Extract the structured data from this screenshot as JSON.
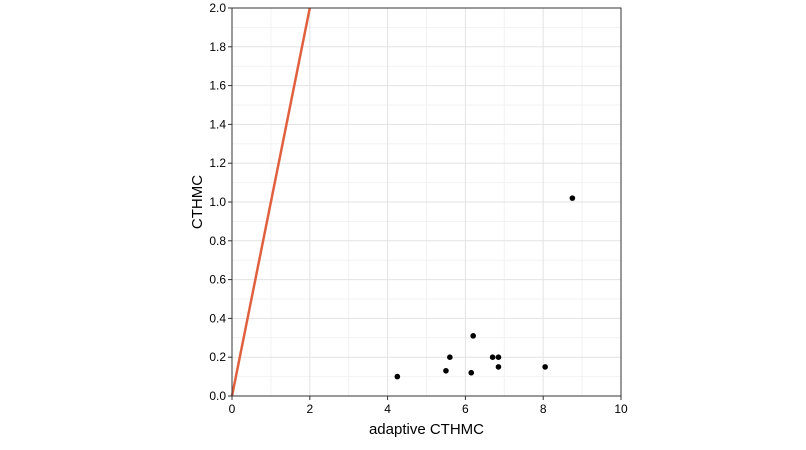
{
  "chart_data": {
    "type": "scatter",
    "title": "",
    "xlabel": "adaptive CTHMC",
    "ylabel": "CTHMC",
    "xlim": [
      0,
      10
    ],
    "ylim": [
      0,
      2
    ],
    "x_ticks": [
      "0",
      "2",
      "4",
      "6",
      "8",
      "10"
    ],
    "y_ticks": [
      "0.0",
      "0.2",
      "0.4",
      "0.6",
      "0.8",
      "1.0",
      "1.2",
      "1.4",
      "1.6",
      "1.8",
      "2.0"
    ],
    "grid": true,
    "legend": "none",
    "points": [
      {
        "x": 4.25,
        "y": 0.1
      },
      {
        "x": 5.5,
        "y": 0.13
      },
      {
        "x": 5.6,
        "y": 0.2
      },
      {
        "x": 6.15,
        "y": 0.12
      },
      {
        "x": 6.2,
        "y": 0.31
      },
      {
        "x": 6.7,
        "y": 0.2
      },
      {
        "x": 6.85,
        "y": 0.2
      },
      {
        "x": 6.85,
        "y": 0.15
      },
      {
        "x": 8.05,
        "y": 0.15
      },
      {
        "x": 8.75,
        "y": 1.02
      }
    ],
    "reference_line": {
      "kind": "identity",
      "from": [
        0,
        0
      ],
      "to": [
        2,
        2
      ],
      "color": "#e0603f"
    },
    "colors": {
      "points": "#000000",
      "panel_border": "#333333",
      "grid_major": "#e3e3e3",
      "grid_minor": "#f2f2f2"
    }
  }
}
